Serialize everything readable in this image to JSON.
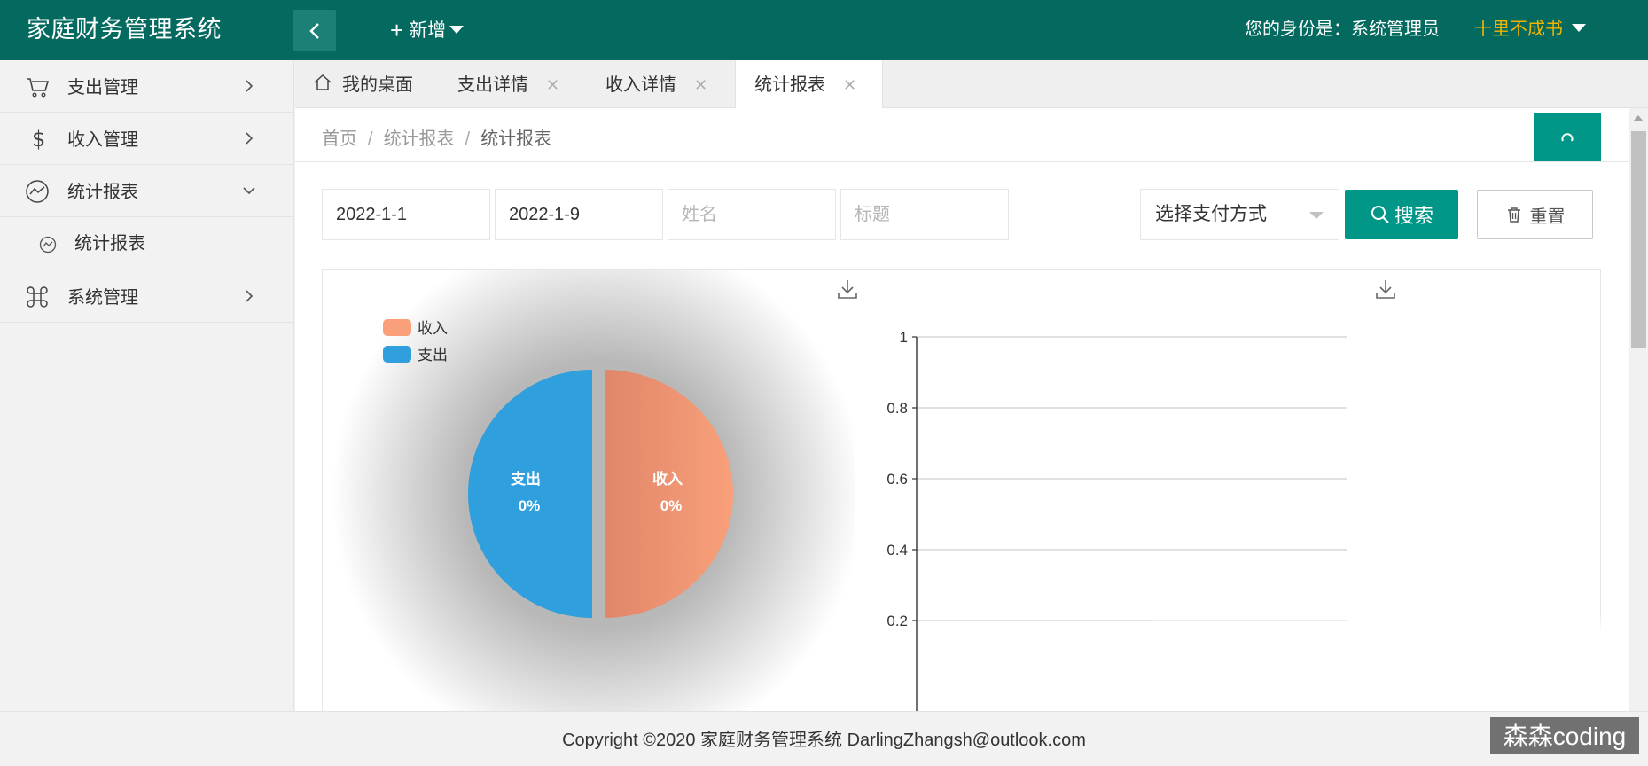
{
  "app": {
    "title": "家庭财务管理系统",
    "new_menu_label": "新增",
    "identity_text": "您的身份是：系统管理员",
    "user_name": "十里不成书"
  },
  "sidebar": {
    "items": [
      {
        "label": "支出管理",
        "icon": "cart-icon",
        "arrow": "chevron-right-icon"
      },
      {
        "label": "收入管理",
        "icon": "dollar-icon",
        "arrow": "chevron-right-icon"
      },
      {
        "label": "统计报表",
        "icon": "trend-icon",
        "arrow": "chevron-down-icon"
      },
      {
        "label": "系统管理",
        "icon": "command-icon",
        "arrow": "chevron-right-icon"
      }
    ],
    "sub_items": [
      {
        "label": "统计报表",
        "icon": "trend-icon"
      }
    ]
  },
  "tabs": [
    {
      "label": "我的桌面",
      "icon": "home-icon",
      "closable": false
    },
    {
      "label": "支出详情",
      "closable": true
    },
    {
      "label": "收入详情",
      "closable": true
    },
    {
      "label": "统计报表",
      "closable": true,
      "active": true
    }
  ],
  "breadcrumb": {
    "items": [
      "首页",
      "统计报表",
      "统计报表"
    ],
    "separator": "/"
  },
  "filters": {
    "start_date": "2022-1-1",
    "end_date": "2022-1-9",
    "name_placeholder": "姓名",
    "title_placeholder": "标题",
    "payment_select": "选择支付方式",
    "search_label": "搜索",
    "reset_label": "重置"
  },
  "chart_data": [
    {
      "type": "pie",
      "legend": [
        "收入",
        "支出"
      ],
      "legend_position": "top-left",
      "slices": [
        {
          "name": "收入",
          "value": 0,
          "label": "收入",
          "percent_label": "0%",
          "color": "#f9a07a"
        },
        {
          "name": "支出",
          "value": 0,
          "label": "支出",
          "percent_label": "0%",
          "color": "#2f9fdd"
        }
      ]
    },
    {
      "type": "bar",
      "ylim": [
        0,
        1
      ],
      "yticks": [
        "0.2",
        "0.4",
        "0.6",
        "0.8",
        "1"
      ],
      "grid": true,
      "categories": [],
      "values": []
    }
  ],
  "footer": {
    "copyright": "Copyright ©2020 家庭财务管理系统 DarlingZhangsh@outlook.com"
  },
  "watermark": "森森coding",
  "colors": {
    "header": "#04695e",
    "primary": "#009688",
    "accent_user": "#f2b400",
    "income": "#f9a07a",
    "expense": "#2f9fdd"
  }
}
